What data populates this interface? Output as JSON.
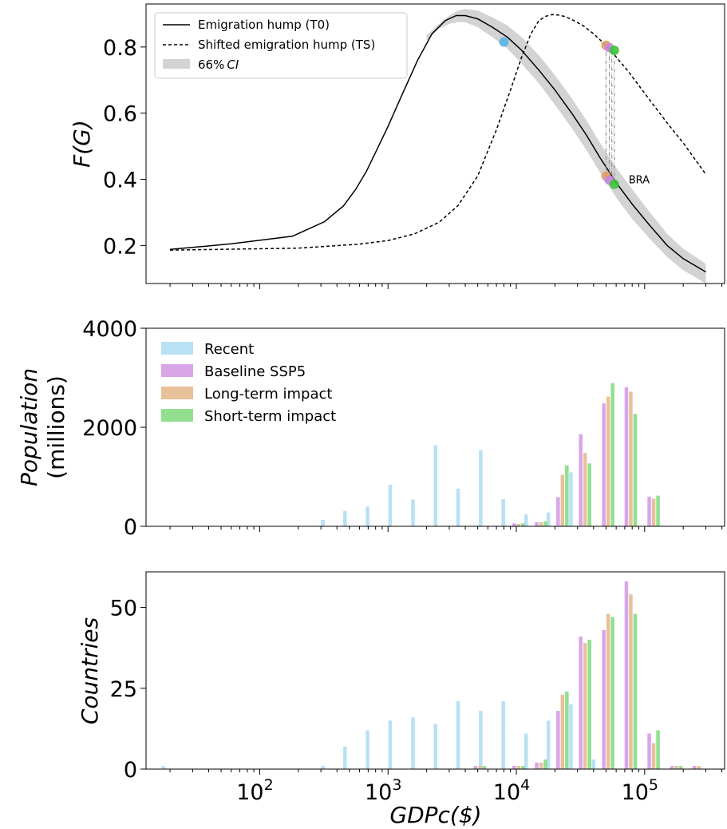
{
  "figure": {
    "x_axis_label": "GDPc($)",
    "x_tick_labels": [
      {
        "value": 100,
        "label": "10",
        "sup": "2"
      },
      {
        "value": 1000,
        "label": "10",
        "sup": "3"
      },
      {
        "value": 10000,
        "label": "10",
        "sup": "4"
      },
      {
        "value": 100000,
        "label": "10",
        "sup": "5"
      }
    ]
  },
  "colors": {
    "recent": "#b8e1f6",
    "baseline": "#d8a6e8",
    "longterm": "#e8c19a",
    "shortterm": "#92e08f",
    "ci": "#d3d3d3",
    "point_recent": "#5ab4e8",
    "point_baseline": "#c586e0",
    "point_longterm": "#e0a060",
    "point_shortterm": "#3cc43c"
  },
  "chart_data": [
    {
      "type": "line",
      "ylabel": "F(G)",
      "ylabel_parts": {
        "main": "F(",
        "var": "G",
        "close": ")"
      },
      "xscale": "log",
      "xlim": [
        13,
        420000
      ],
      "ylim": [
        0.085,
        0.93
      ],
      "yticks": [
        0.2,
        0.4,
        0.6,
        0.8
      ],
      "yticklabels": [
        "0.2",
        "0.4",
        "0.6",
        "0.8"
      ],
      "legend_position": "top-left",
      "legend": [
        {
          "label": "Emigration hump (T0)",
          "style": "solid"
        },
        {
          "label": "Shifted emigration hump (TS)",
          "style": "dashed"
        },
        {
          "label_prefix": "66%",
          "label_italic": "CI",
          "style": "band"
        }
      ],
      "series": [
        {
          "name": "Emigration hump (T0)",
          "style": "solid",
          "x": [
            20,
            60,
            180,
            320,
            450,
            560,
            680,
            820,
            1000,
            1300,
            1700,
            2200,
            2800,
            3400,
            4000,
            5000,
            6500,
            8500,
            11000,
            15000,
            20000,
            27000,
            35000,
            45000,
            60000,
            80000,
            110000,
            150000,
            200000,
            300000
          ],
          "y": [
            0.188,
            0.205,
            0.228,
            0.272,
            0.32,
            0.37,
            0.425,
            0.49,
            0.56,
            0.66,
            0.76,
            0.84,
            0.88,
            0.895,
            0.895,
            0.885,
            0.86,
            0.83,
            0.79,
            0.73,
            0.67,
            0.6,
            0.535,
            0.465,
            0.39,
            0.325,
            0.26,
            0.2,
            0.16,
            0.12
          ]
        },
        {
          "name": "Shifted emigration hump (TS)",
          "style": "dashed",
          "x": [
            20,
            200,
            600,
            1000,
            1600,
            2500,
            3500,
            5000,
            7000,
            9000,
            11000,
            13000,
            15000,
            17000,
            19000,
            21000,
            24000,
            28000,
            33000,
            40000,
            50000,
            60000,
            75000,
            100000,
            150000,
            200000,
            300000
          ],
          "y": [
            0.186,
            0.192,
            0.204,
            0.215,
            0.235,
            0.27,
            0.32,
            0.41,
            0.55,
            0.67,
            0.77,
            0.84,
            0.88,
            0.893,
            0.898,
            0.897,
            0.892,
            0.88,
            0.865,
            0.84,
            0.805,
            0.77,
            0.725,
            0.66,
            0.57,
            0.51,
            0.415
          ]
        }
      ],
      "ci_band": {
        "x": [
          2000,
          2500,
          3000,
          3500,
          4000,
          5000,
          6500,
          8500,
          11000,
          15000,
          20000,
          27000,
          35000,
          45000,
          60000,
          80000,
          110000,
          150000,
          200000,
          300000
        ],
        "lower": [
          0.82,
          0.855,
          0.87,
          0.875,
          0.875,
          0.86,
          0.83,
          0.795,
          0.75,
          0.69,
          0.625,
          0.555,
          0.49,
          0.42,
          0.345,
          0.28,
          0.22,
          0.165,
          0.125,
          0.085
        ],
        "upper": [
          0.835,
          0.87,
          0.895,
          0.91,
          0.915,
          0.91,
          0.89,
          0.865,
          0.83,
          0.775,
          0.715,
          0.645,
          0.58,
          0.51,
          0.435,
          0.37,
          0.3,
          0.235,
          0.19,
          0.145
        ]
      },
      "points": [
        {
          "series": "recent",
          "x": 8000,
          "y": 0.815
        },
        {
          "series": "longterm",
          "x": 50000,
          "y": 0.805
        },
        {
          "series": "baseline",
          "x": 53000,
          "y": 0.798
        },
        {
          "series": "shortterm",
          "x": 58000,
          "y": 0.79
        },
        {
          "series": "longterm",
          "x": 50000,
          "y": 0.41
        },
        {
          "series": "baseline",
          "x": 53000,
          "y": 0.398
        },
        {
          "series": "shortterm",
          "x": 58000,
          "y": 0.385
        }
      ],
      "connectors": [
        {
          "x": 50000,
          "y1": 0.41,
          "y2": 0.805
        },
        {
          "x": 53000,
          "y1": 0.398,
          "y2": 0.798
        },
        {
          "x": 55500,
          "y1": 0.39,
          "y2": 0.795
        },
        {
          "x": 58000,
          "y1": 0.385,
          "y2": 0.79
        }
      ],
      "annotation": {
        "text": "BRA",
        "x": 75000,
        "y": 0.4
      }
    },
    {
      "type": "bar",
      "ylabel_line1": "Population",
      "ylabel_line2": "(millions)",
      "xscale": "log",
      "xlim": [
        13,
        420000
      ],
      "ylim": [
        0,
        4000
      ],
      "yticks": [
        0,
        2000,
        4000
      ],
      "yticklabels": [
        "0",
        "2000",
        "4000"
      ],
      "legend_position": "top-left",
      "series": [
        {
          "name": "Recent",
          "key": "recent",
          "x": [
            350,
            520,
            780,
            1170,
            1760,
            2640,
            3960,
            5940,
            8900,
            13400,
            20000,
            30000,
            45000
          ],
          "values": [
            130,
            310,
            400,
            840,
            540,
            1640,
            760,
            1540,
            550,
            240,
            280,
            1090,
            0
          ]
        },
        {
          "name": "Baseline SSP5",
          "key": "baseline",
          "x": [
            10000,
            15000,
            22000,
            33000,
            50000,
            75000,
            113000
          ],
          "values": [
            60,
            80,
            590,
            1860,
            2480,
            2810,
            600
          ]
        },
        {
          "name": "Long-term impact",
          "key": "longterm",
          "x": [
            10000,
            15000,
            22000,
            33000,
            50000,
            75000,
            113000
          ],
          "values": [
            50,
            80,
            1040,
            1480,
            2620,
            2720,
            560
          ]
        },
        {
          "name": "Short-term impact",
          "key": "shortterm",
          "x": [
            10000,
            15000,
            22000,
            33000,
            50000,
            75000,
            113000
          ],
          "values": [
            60,
            100,
            1230,
            1270,
            2890,
            2270,
            620
          ]
        }
      ]
    },
    {
      "type": "bar",
      "ylabel": "Countries",
      "xscale": "log",
      "xlim": [
        13,
        420000
      ],
      "ylim": [
        0,
        61
      ],
      "yticks": [
        0,
        25,
        50
      ],
      "yticklabels": [
        "0",
        "25",
        "50"
      ],
      "series": [
        {
          "name": "Recent",
          "key": "recent",
          "x": [
            20,
            350,
            520,
            780,
            1170,
            1760,
            2640,
            3960,
            5940,
            8900,
            13400,
            20000,
            30000,
            45000
          ],
          "values": [
            1,
            1,
            7,
            12,
            15,
            16,
            14,
            21,
            18,
            21,
            11,
            15,
            20,
            3
          ]
        },
        {
          "name": "Baseline SSP5",
          "key": "baseline",
          "x": [
            5000,
            10000,
            15000,
            22000,
            33000,
            50000,
            75000,
            113000,
            170000,
            254000
          ],
          "values": [
            1,
            1,
            2,
            18,
            41,
            43,
            58,
            11,
            1,
            1
          ]
        },
        {
          "name": "Long-term impact",
          "key": "longterm",
          "x": [
            5000,
            10000,
            15000,
            22000,
            33000,
            50000,
            75000,
            113000,
            170000,
            254000
          ],
          "values": [
            1,
            1,
            2,
            23,
            39,
            48,
            54,
            8,
            1,
            1
          ]
        },
        {
          "name": "Short-term impact",
          "key": "shortterm",
          "x": [
            5000,
            10000,
            15000,
            22000,
            33000,
            50000,
            75000,
            113000,
            170000,
            254000
          ],
          "values": [
            1,
            1,
            3,
            24,
            40,
            47,
            48,
            12,
            1,
            0
          ]
        }
      ]
    }
  ]
}
